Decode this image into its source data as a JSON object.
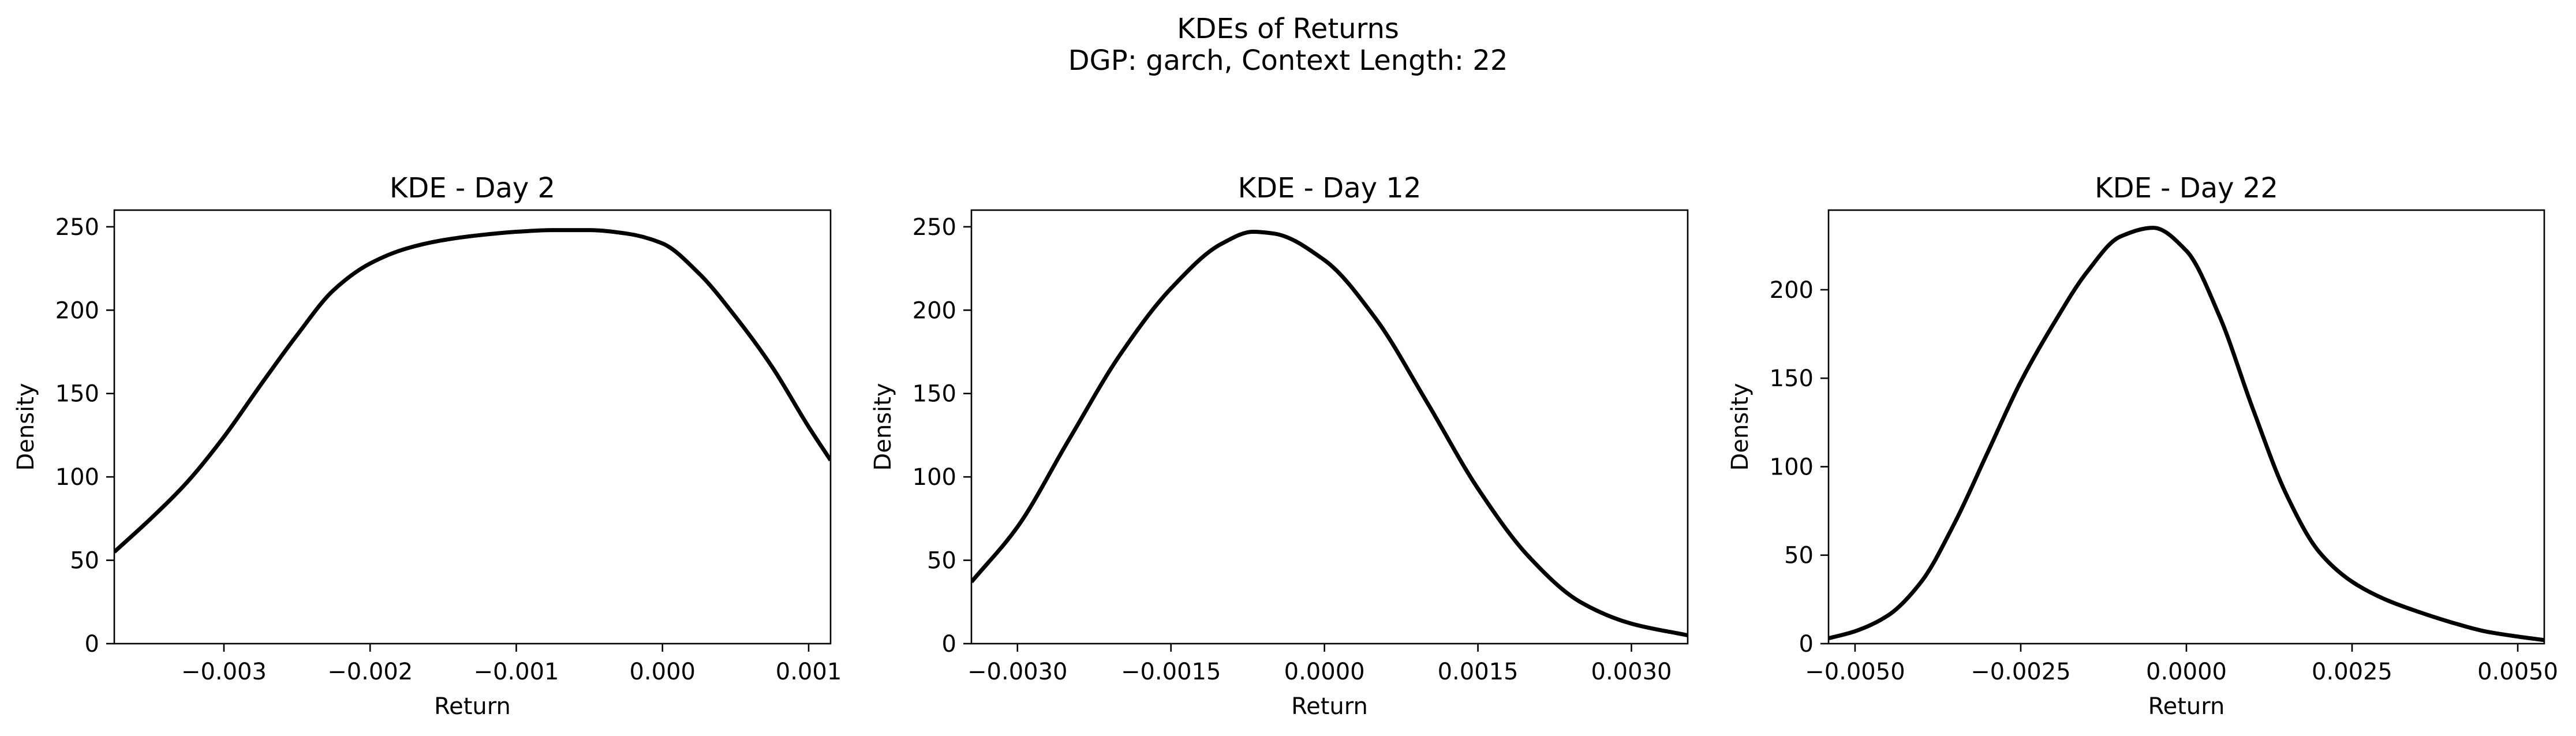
{
  "figure": {
    "title_line1": "KDEs of Returns",
    "title_line2": "DGP: garch, Context Length: 22"
  },
  "chart_data": [
    {
      "type": "line",
      "title": "KDE - Day 2",
      "xlabel": "Return",
      "ylabel": "Density",
      "xlim": [
        -0.00375,
        0.00115
      ],
      "ylim": [
        0,
        260
      ],
      "xticks": [
        -0.003,
        -0.002,
        -0.001,
        0.0,
        0.001
      ],
      "xtick_labels": [
        "−0.003",
        "−0.002",
        "−0.001",
        "0.000",
        "0.001"
      ],
      "yticks": [
        0,
        50,
        100,
        150,
        200,
        250
      ],
      "ytick_labels": [
        "0",
        "50",
        "100",
        "150",
        "200",
        "250"
      ],
      "grid": false,
      "color": "#000000",
      "x": [
        -0.00375,
        -0.0035,
        -0.00325,
        -0.003,
        -0.00275,
        -0.0025,
        -0.00225,
        -0.002,
        -0.00175,
        -0.0015,
        -0.00125,
        -0.001,
        -0.00075,
        -0.0005,
        -0.00025,
        0.0,
        0.00025,
        0.0005,
        0.00075,
        0.001,
        0.00115
      ],
      "y": [
        55,
        75,
        97,
        124,
        155,
        185,
        212,
        228,
        237,
        242,
        245,
        247,
        248,
        248,
        246,
        240,
        222,
        196,
        166,
        130,
        110
      ]
    },
    {
      "type": "line",
      "title": "KDE - Day 12",
      "xlabel": "Return",
      "ylabel": "Density",
      "xlim": [
        -0.00345,
        0.00355
      ],
      "ylim": [
        0,
        260
      ],
      "xticks": [
        -0.003,
        -0.0015,
        0.0,
        0.0015,
        0.003
      ],
      "xtick_labels": [
        "−0.0030",
        "−0.0015",
        "0.0000",
        "0.0015",
        "0.0030"
      ],
      "yticks": [
        0,
        50,
        100,
        150,
        200,
        250
      ],
      "ytick_labels": [
        "0",
        "50",
        "100",
        "150",
        "200",
        "250"
      ],
      "grid": false,
      "color": "#000000",
      "x": [
        -0.00345,
        -0.003,
        -0.0025,
        -0.002,
        -0.0015,
        -0.001,
        -0.0007,
        -0.0005,
        0.0,
        0.0005,
        0.001,
        0.0015,
        0.002,
        0.0025,
        0.003,
        0.00355
      ],
      "y": [
        37,
        70,
        122,
        173,
        213,
        240,
        247,
        246,
        230,
        195,
        145,
        93,
        52,
        25,
        12,
        5
      ]
    },
    {
      "type": "line",
      "title": "KDE - Day 22",
      "xlabel": "Return",
      "ylabel": "Density",
      "xlim": [
        -0.0054,
        0.0054
      ],
      "ylim": [
        0,
        245
      ],
      "xticks": [
        -0.005,
        -0.0025,
        0.0,
        0.0025,
        0.005
      ],
      "xtick_labels": [
        "−0.0050",
        "−0.0025",
        "0.0000",
        "0.0025",
        "0.0050"
      ],
      "yticks": [
        0,
        50,
        100,
        150,
        200
      ],
      "ytick_labels": [
        "0",
        "50",
        "100",
        "150",
        "200"
      ],
      "grid": false,
      "color": "#000000",
      "x": [
        -0.0054,
        -0.005,
        -0.0045,
        -0.004,
        -0.0035,
        -0.003,
        -0.0025,
        -0.002,
        -0.0015,
        -0.001,
        -0.0005,
        0.0,
        0.0005,
        0.001,
        0.0015,
        0.002,
        0.0025,
        0.003,
        0.0035,
        0.004,
        0.0045,
        0.005,
        0.0054
      ],
      "y": [
        3,
        7,
        16,
        35,
        68,
        108,
        148,
        181,
        210,
        230,
        235,
        222,
        185,
        133,
        85,
        52,
        35,
        25,
        18,
        12,
        7,
        4,
        2
      ]
    }
  ]
}
